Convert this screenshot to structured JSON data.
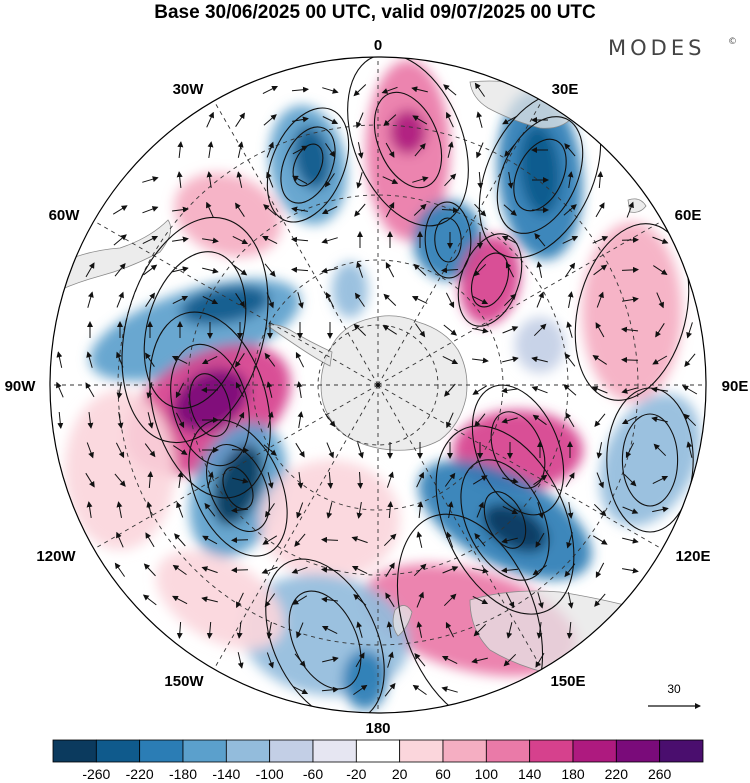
{
  "title": "Base 30/06/2025 00 UTC, valid 09/07/2025 00 UTC",
  "brand": {
    "text": "MODES",
    "mark": "©"
  },
  "longitude_labels": [
    "0",
    "30E",
    "60E",
    "90E",
    "120E",
    "150E",
    "180",
    "150W",
    "120W",
    "90W",
    "60W",
    "30W"
  ],
  "projection": "south-polar-stereographic",
  "reference_vector": {
    "value": "30",
    "icon": "arrow-right-icon"
  },
  "colorbar": {
    "labels": [
      "-260",
      "-220",
      "-180",
      "-140",
      "-100",
      "-60",
      "-20",
      "20",
      "60",
      "100",
      "140",
      "180",
      "220",
      "260"
    ],
    "colors": [
      "#0b3a5e",
      "#0f5a8c",
      "#2b7db5",
      "#5ba0cc",
      "#93bcdc",
      "#c3cfe6",
      "#e6e6f2",
      "#ffffff",
      "#fbd6dc",
      "#f5aec2",
      "#ea7aa8",
      "#d6418d",
      "#ae1a7f",
      "#7a0b7a",
      "#4a0e6e"
    ]
  },
  "colors": {
    "land": "#e6e6e6",
    "coast": "#8a8a8a",
    "grid": "#333333"
  }
}
